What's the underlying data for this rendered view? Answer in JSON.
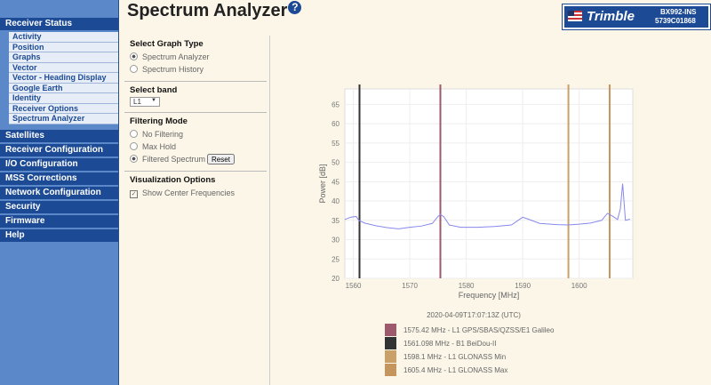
{
  "header": {
    "title": "Spectrum Analyzer",
    "help_icon": "?",
    "logo": "Trimble",
    "device": "BX992-INS",
    "serial": "5739C01868"
  },
  "sidebar": {
    "sections": [
      {
        "label": "Receiver Status",
        "items": [
          "Activity",
          "Position",
          "Graphs",
          "Vector",
          "Vector - Heading Display",
          "Google Earth",
          "Identity",
          "Receiver Options",
          "Spectrum Analyzer"
        ]
      },
      {
        "label": "Satellites"
      },
      {
        "label": "Receiver Configuration"
      },
      {
        "label": "I/O Configuration"
      },
      {
        "label": "MSS Corrections"
      },
      {
        "label": "Network Configuration"
      },
      {
        "label": "Security"
      },
      {
        "label": "Firmware"
      },
      {
        "label": "Help"
      }
    ]
  },
  "controls": {
    "graph_type": {
      "title": "Select Graph Type",
      "options": [
        "Spectrum Analyzer",
        "Spectrum History"
      ],
      "selected": 0
    },
    "band": {
      "title": "Select band",
      "value": "L1"
    },
    "filtering": {
      "title": "Filtering Mode",
      "options": [
        "No Filtering",
        "Max Hold",
        "Filtered Spectrum"
      ],
      "selected": 2,
      "reset": "Reset"
    },
    "visualization": {
      "title": "Visualization Options",
      "checkbox": "Show Center Frequencies",
      "checked": true
    }
  },
  "chart_data": {
    "type": "line",
    "x_label": "Frequency [MHz]",
    "y_label": "Power [dB]",
    "timestamp": "2020-04-09T17:07:13Z (UTC)",
    "xlim": [
      1558.5,
      1609.5
    ],
    "xticks": [
      1560,
      1570,
      1580,
      1590,
      1600
    ],
    "ylim": [
      20,
      69
    ],
    "yticks": [
      20,
      25,
      30,
      35,
      40,
      45,
      50,
      55,
      60,
      65
    ],
    "grid": true,
    "series": [
      {
        "color": "#8888ee",
        "x": [
          1558.5,
          1559.5,
          1560.5,
          1561,
          1562,
          1564,
          1566,
          1568,
          1570,
          1572,
          1574,
          1575,
          1575.42,
          1576,
          1577,
          1579,
          1582,
          1585,
          1588,
          1590,
          1591,
          1593,
          1596,
          1598,
          1600,
          1602,
          1604,
          1605,
          1605.4,
          1606,
          1606.8,
          1607.3,
          1607.7,
          1608.2,
          1609
        ],
        "values": [
          35.2,
          35.8,
          36,
          35,
          34.3,
          33.6,
          33.1,
          32.8,
          33.2,
          33.5,
          34.2,
          36,
          36.5,
          36,
          33.8,
          33.2,
          33.2,
          33.4,
          33.8,
          35.8,
          35.3,
          34.2,
          33.9,
          33.8,
          34,
          34.3,
          35,
          36.8,
          36.5,
          36,
          35.2,
          38,
          44.5,
          35,
          35.3
        ]
      }
    ],
    "center_frequencies": [
      {
        "value": 1575.42,
        "label": "1575.42 MHz - L1 GPS/SBAS/QZSS/E1 Galileo",
        "color": "#9c5a6c"
      },
      {
        "value": 1561.098,
        "label": "1561.098 MHz - B1 BeiDou-II",
        "color": "#333333"
      },
      {
        "value": 1598.1,
        "label": "1598.1 MHz - L1 GLONASS Min",
        "color": "#c9a068"
      },
      {
        "value": 1605.4,
        "label": "1605.4 MHz - L1 GLONASS Max",
        "color": "#c4955c"
      }
    ]
  }
}
